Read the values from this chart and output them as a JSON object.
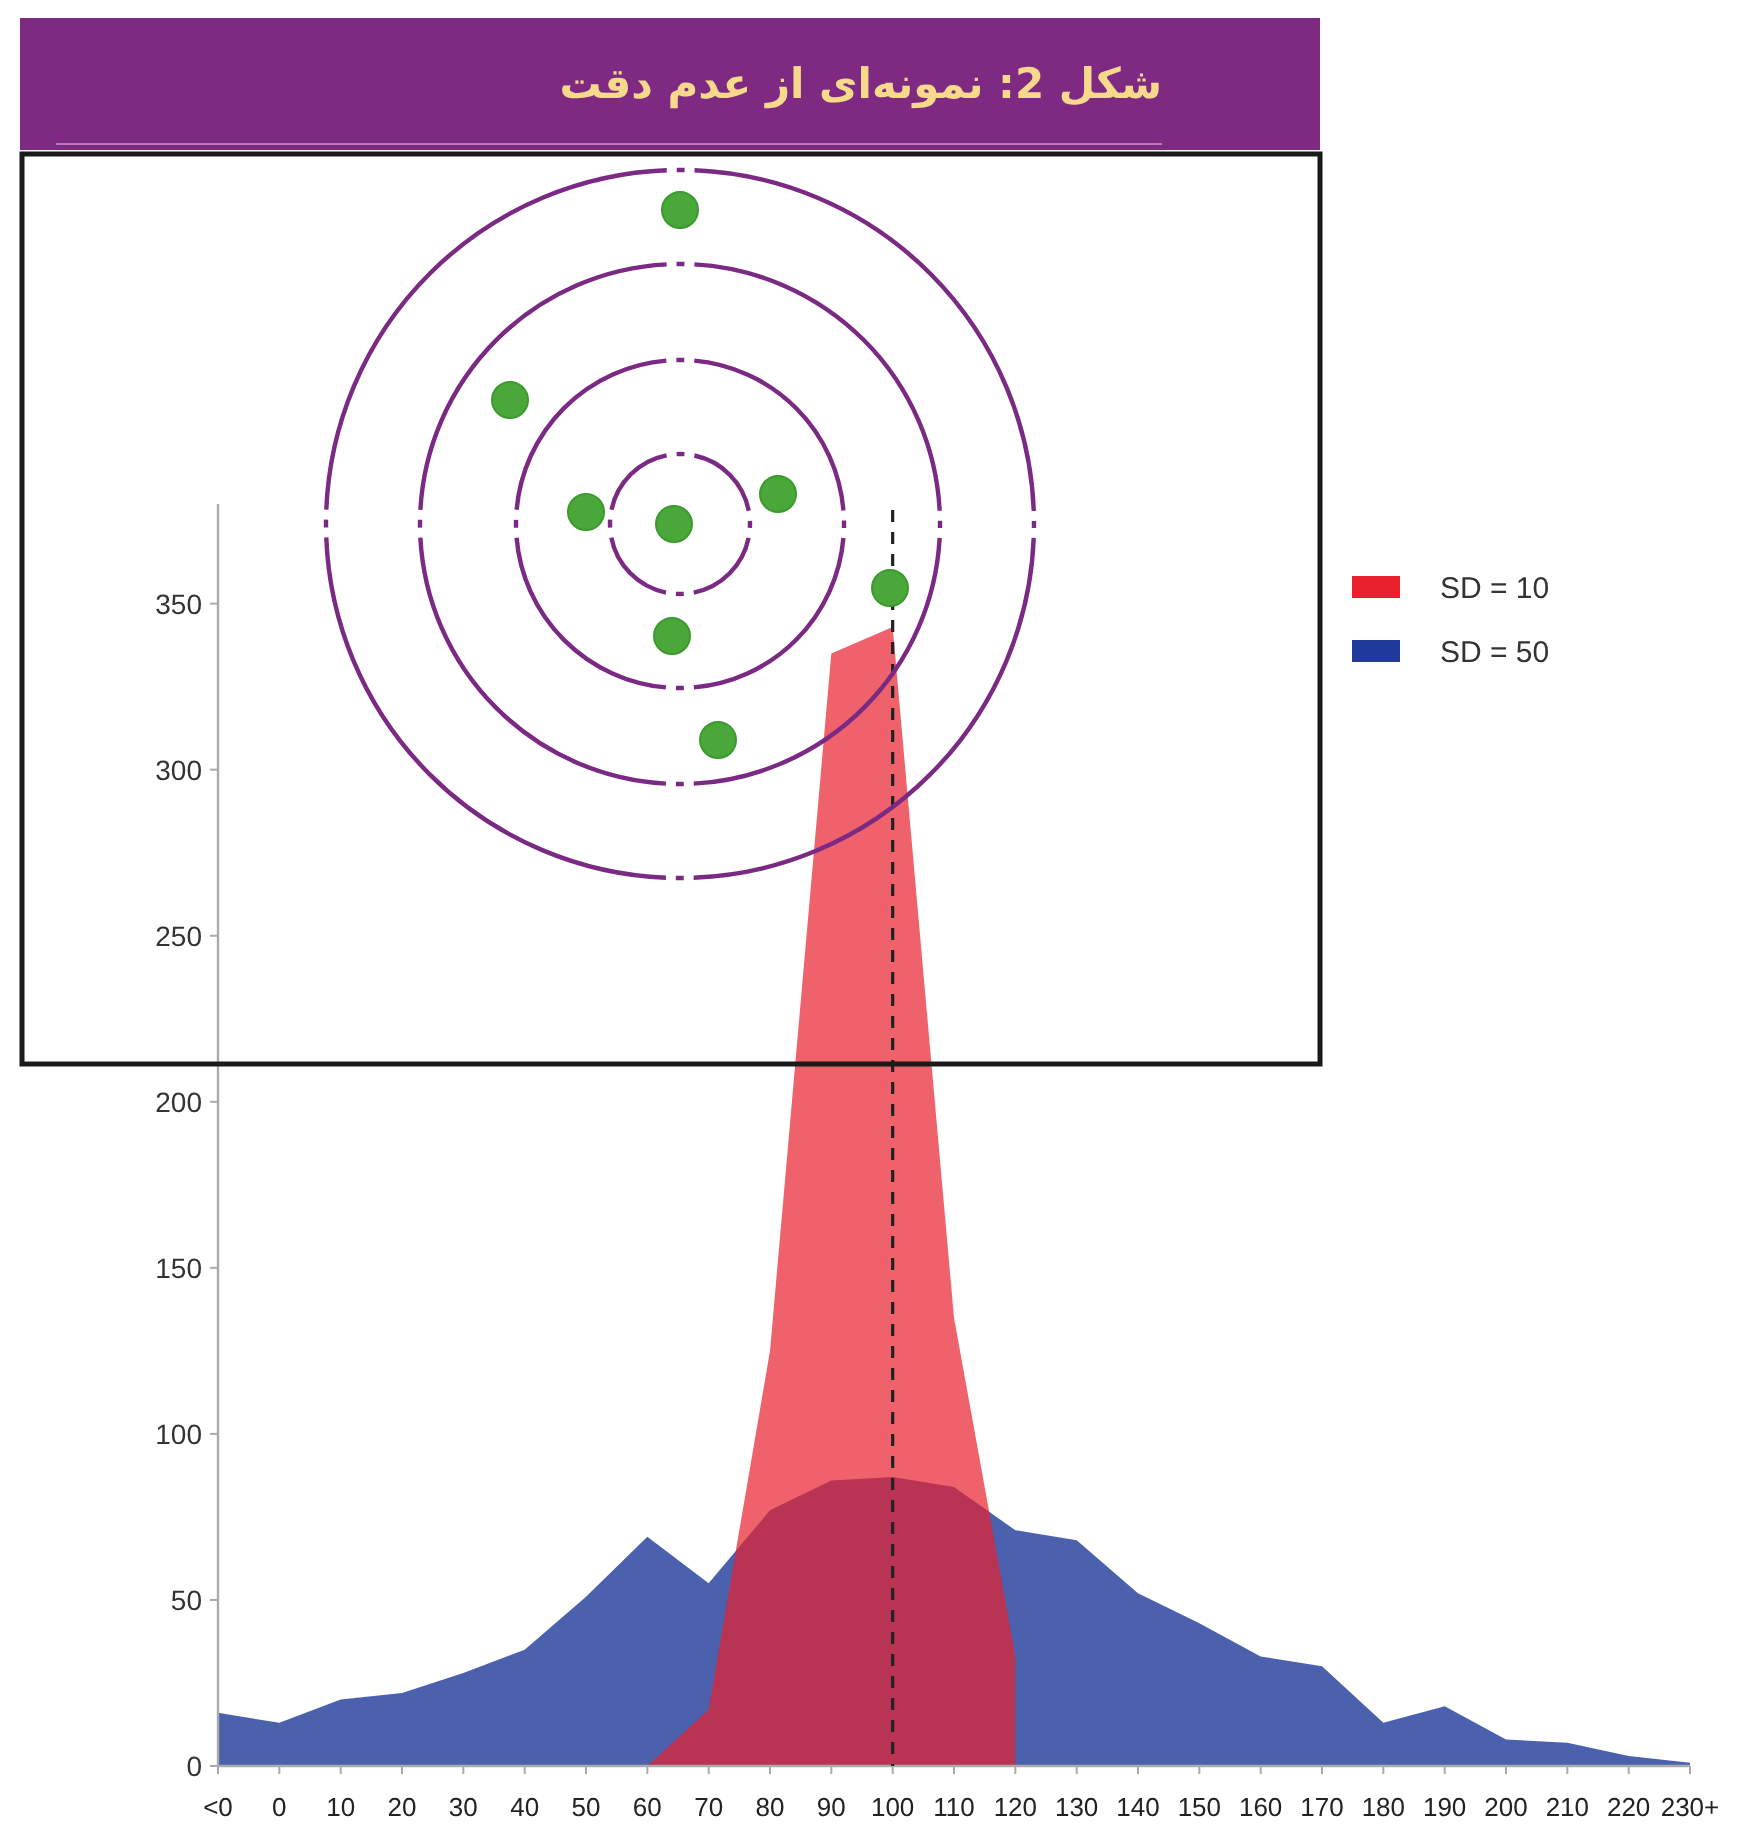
{
  "chart_data": {
    "type": "area",
    "title": "شکل 2: نمونه‌ای از عدم دقت",
    "categories": [
      "<0",
      "0",
      "10",
      "20",
      "30",
      "40",
      "50",
      "60",
      "70",
      "80",
      "90",
      "100",
      "110",
      "120",
      "130",
      "140",
      "150",
      "160",
      "170",
      "180",
      "190",
      "200",
      "210",
      "220",
      "230+"
    ],
    "series": [
      {
        "name": "SD = 10",
        "color": "#e8202e",
        "values": [
          null,
          null,
          null,
          null,
          null,
          null,
          null,
          0,
          17,
          125,
          335,
          343,
          135,
          33,
          null,
          null,
          null,
          null,
          null,
          null,
          null,
          null,
          null,
          null,
          null
        ]
      },
      {
        "name": "SD = 50",
        "color": "#1f3a9a",
        "values": [
          16,
          13,
          20,
          22,
          28,
          35,
          51,
          69,
          55,
          77,
          86,
          87,
          84,
          71,
          68,
          52,
          43,
          33,
          30,
          13,
          18,
          8,
          7,
          3,
          1
        ]
      }
    ],
    "ylim": [
      0,
      380
    ],
    "yticks": [
      0,
      50,
      100,
      150,
      200,
      250,
      300,
      350
    ],
    "legend": "right",
    "ref_lines": [
      {
        "axis": "x",
        "value": "100",
        "line_style": "dashed",
        "color": "#222222"
      }
    ]
  }
}
